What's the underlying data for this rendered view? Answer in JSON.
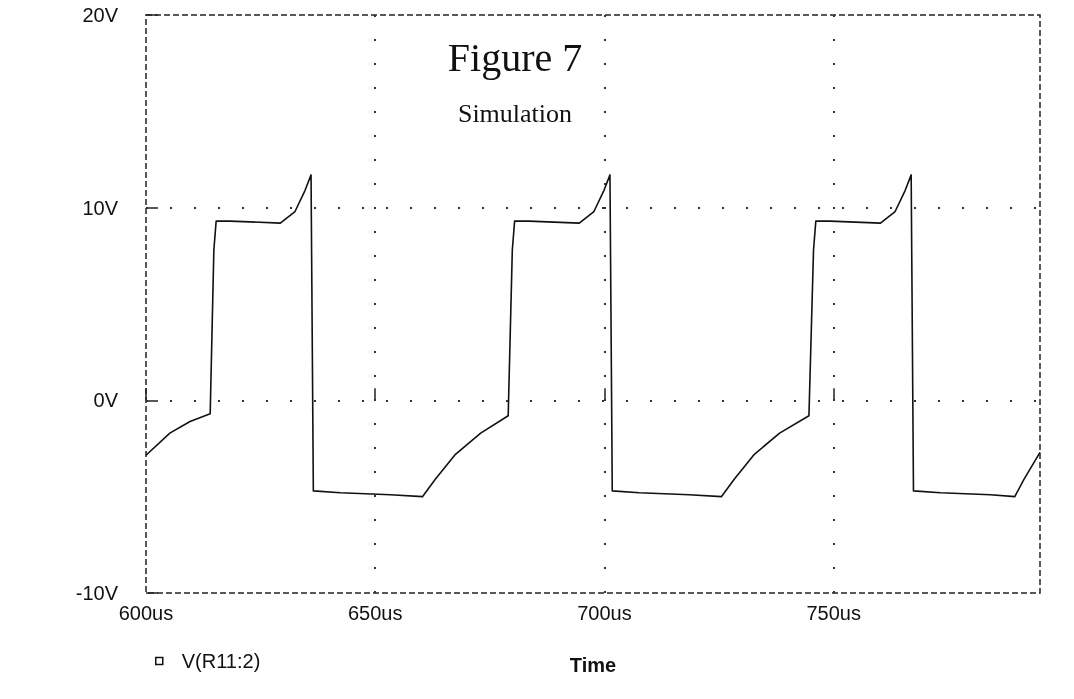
{
  "chart_data": {
    "type": "line",
    "title": "Figure 7",
    "subtitle": "Simulation",
    "xlabel": "Time",
    "x": [
      600,
      605.2,
      609.6,
      614,
      614.8,
      615.3,
      618.3,
      629.3,
      632.5,
      634.7,
      636,
      636.5,
      642.4,
      653.3,
      660.3,
      663.1,
      667.5,
      673,
      679,
      679.9,
      680.4,
      683.5,
      694.5,
      697.7,
      699.9,
      701.2,
      701.7,
      707.6,
      718.5,
      725.5,
      728.3,
      732.7,
      738.2,
      744.6,
      745.6,
      746.1,
      749.2,
      760.2,
      763.4,
      765.6,
      766.9,
      767.4,
      773.3,
      784.2,
      789.5,
      791.5,
      795
    ],
    "series": [
      {
        "name": "V(R11:2)",
        "color": "#111111",
        "values": [
          -2.85,
          -1.7,
          -1.1,
          -0.7,
          7.8,
          9.3,
          9.3,
          9.2,
          9.8,
          10.9,
          11.7,
          -4.7,
          -4.8,
          -4.9,
          -5.0,
          -4.1,
          -2.8,
          -1.7,
          -0.8,
          7.8,
          9.3,
          9.3,
          9.2,
          9.8,
          10.9,
          11.7,
          -4.7,
          -4.8,
          -4.9,
          -5.0,
          -4.1,
          -2.8,
          -1.7,
          -0.8,
          7.8,
          9.3,
          9.3,
          9.2,
          9.8,
          10.9,
          11.7,
          -4.7,
          -4.8,
          -4.9,
          -5.0,
          -4.1,
          -2.7
        ]
      }
    ],
    "xlim": [
      600,
      795
    ],
    "xticks": [
      {
        "value": 600,
        "label": "600us"
      },
      {
        "value": 650,
        "label": "650us"
      },
      {
        "value": 700,
        "label": "700us"
      },
      {
        "value": 750,
        "label": "750us"
      }
    ],
    "ylim": [
      -10,
      20
    ],
    "yticks": [
      {
        "value": -10,
        "label": "-10V"
      },
      {
        "value": 0,
        "label": "0V"
      },
      {
        "value": 10,
        "label": "10V"
      },
      {
        "value": 20,
        "label": "20V"
      }
    ],
    "grid": true,
    "legend": "bottom left",
    "marker": "none",
    "line_style": "solid"
  }
}
